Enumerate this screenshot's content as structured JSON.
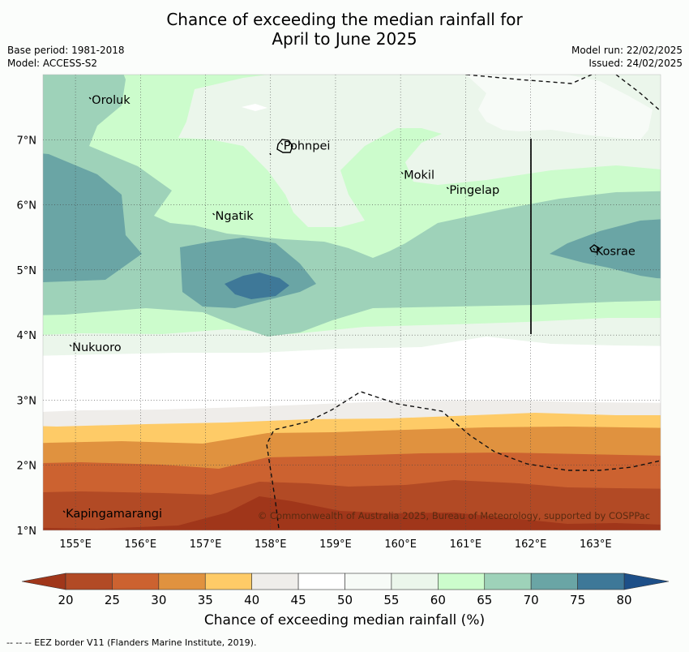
{
  "title": {
    "line1": "Chance of exceeding the median rainfall for",
    "line2": "April to June 2025"
  },
  "meta": {
    "base_period": "Base period: 1981-2018",
    "model": "Model: ACCESS-S2",
    "model_run": "Model run: 22/02/2025",
    "issued": "Issued: 24/02/2025"
  },
  "copyright": "© Commonwealth of Australia 2025, Bureau of Meteorology, supported by COSPPac",
  "axes": {
    "lon_range": [
      154.5,
      164.0
    ],
    "lat_range": [
      1.0,
      8.0
    ],
    "lon_ticks": [
      "155°E",
      "156°E",
      "157°E",
      "158°E",
      "159°E",
      "160°E",
      "161°E",
      "162°E",
      "163°E"
    ],
    "lat_ticks": [
      "1°N",
      "2°N",
      "3°N",
      "4°N",
      "5°N",
      "6°N",
      "7°N"
    ],
    "grid": true
  },
  "places": [
    {
      "name": "Oroluk",
      "lon": 155.25,
      "lat": 7.6
    },
    {
      "name": "Pohnpei",
      "lon": 158.2,
      "lat": 6.9
    },
    {
      "name": "Mokil",
      "lon": 160.05,
      "lat": 6.45
    },
    {
      "name": "Pingelap",
      "lon": 160.75,
      "lat": 6.22
    },
    {
      "name": "Ngatik",
      "lon": 157.15,
      "lat": 5.82
    },
    {
      "name": "Kosrae",
      "lon": 163.0,
      "lat": 5.28
    },
    {
      "name": "Nukuoro",
      "lon": 154.95,
      "lat": 3.8
    },
    {
      "name": "Kapingamarangi",
      "lon": 154.85,
      "lat": 1.25
    }
  ],
  "colorbar": {
    "ticks": [
      "20",
      "25",
      "30",
      "35",
      "40",
      "45",
      "50",
      "55",
      "60",
      "65",
      "70",
      "75",
      "80"
    ],
    "colors": [
      "#a0361a",
      "#b24a25",
      "#cc6230",
      "#e0923f",
      "#fecb67",
      "#efedea",
      "#ffffff",
      "#f7fbf7",
      "#ebf6eb",
      "#ccfccc",
      "#9ed2b9",
      "#6aa5a5",
      "#3e7898",
      "#1d4f88"
    ],
    "label": "Chance of exceeding median rainfall (%)"
  },
  "legend_note": "-- -- -- EEZ border V11 (Flanders Marine Institute, 2019)."
}
